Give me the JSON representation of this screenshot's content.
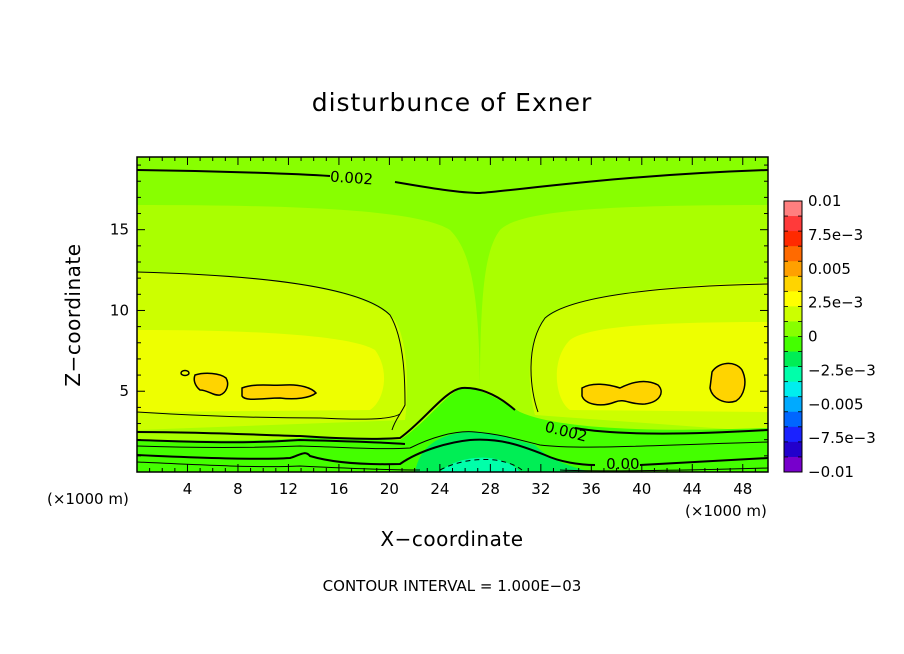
{
  "chart_data": {
    "type": "heatmap",
    "title": "disturbunce of Exner",
    "xlabel": "X−coordinate",
    "ylabel": "Z−coordinate",
    "x_unit": "(×1000 m)",
    "xlim": [
      0,
      50
    ],
    "ylim": [
      0,
      19.5
    ],
    "xticks": [
      4,
      8,
      12,
      16,
      20,
      24,
      28,
      32,
      36,
      40,
      44,
      48
    ],
    "yticks": [
      5,
      10,
      15
    ],
    "contour_interval_text": "CONTOUR INTERVAL = 1.000E−03",
    "contour_labels": [
      {
        "text": "0.002",
        "x": 17,
        "z": 18.2
      },
      {
        "text": "0.002",
        "x": 34,
        "z": 2.5
      },
      {
        "text": "0.00",
        "x": 38.5,
        "z": 0.5
      }
    ],
    "colorbar": {
      "labels": [
        "0.01",
        "7.5e−3",
        "0.005",
        "2.5e−3",
        "0",
        "−2.5e−3",
        "−0.005",
        "−7.5e−3",
        "−0.01"
      ],
      "levels": [
        0.01,
        0.0075,
        0.005,
        0.0025,
        0,
        -0.0025,
        -0.005,
        -0.0075,
        -0.01
      ],
      "colors": [
        "#ff7f7f",
        "#ff3a3a",
        "#ff2a00",
        "#ff6a00",
        "#ffa000",
        "#ffd400",
        "#ffff00",
        "#ccff00",
        "#88ff00",
        "#44ff00",
        "#00ee55",
        "#00ffaa",
        "#00eeee",
        "#00aaff",
        "#0066ff",
        "#1a22ff",
        "#2200cc",
        "#7700cc"
      ]
    },
    "field_colors": {
      "top": "#88ff00",
      "upper": "#aaff00",
      "mid": "#ccff00",
      "core": "#eeff00",
      "peak": "#ffd400",
      "bottom_green": "#44ff00",
      "bottom_teal": "#00ee55",
      "bottom_min": "#00ffaa"
    }
  }
}
